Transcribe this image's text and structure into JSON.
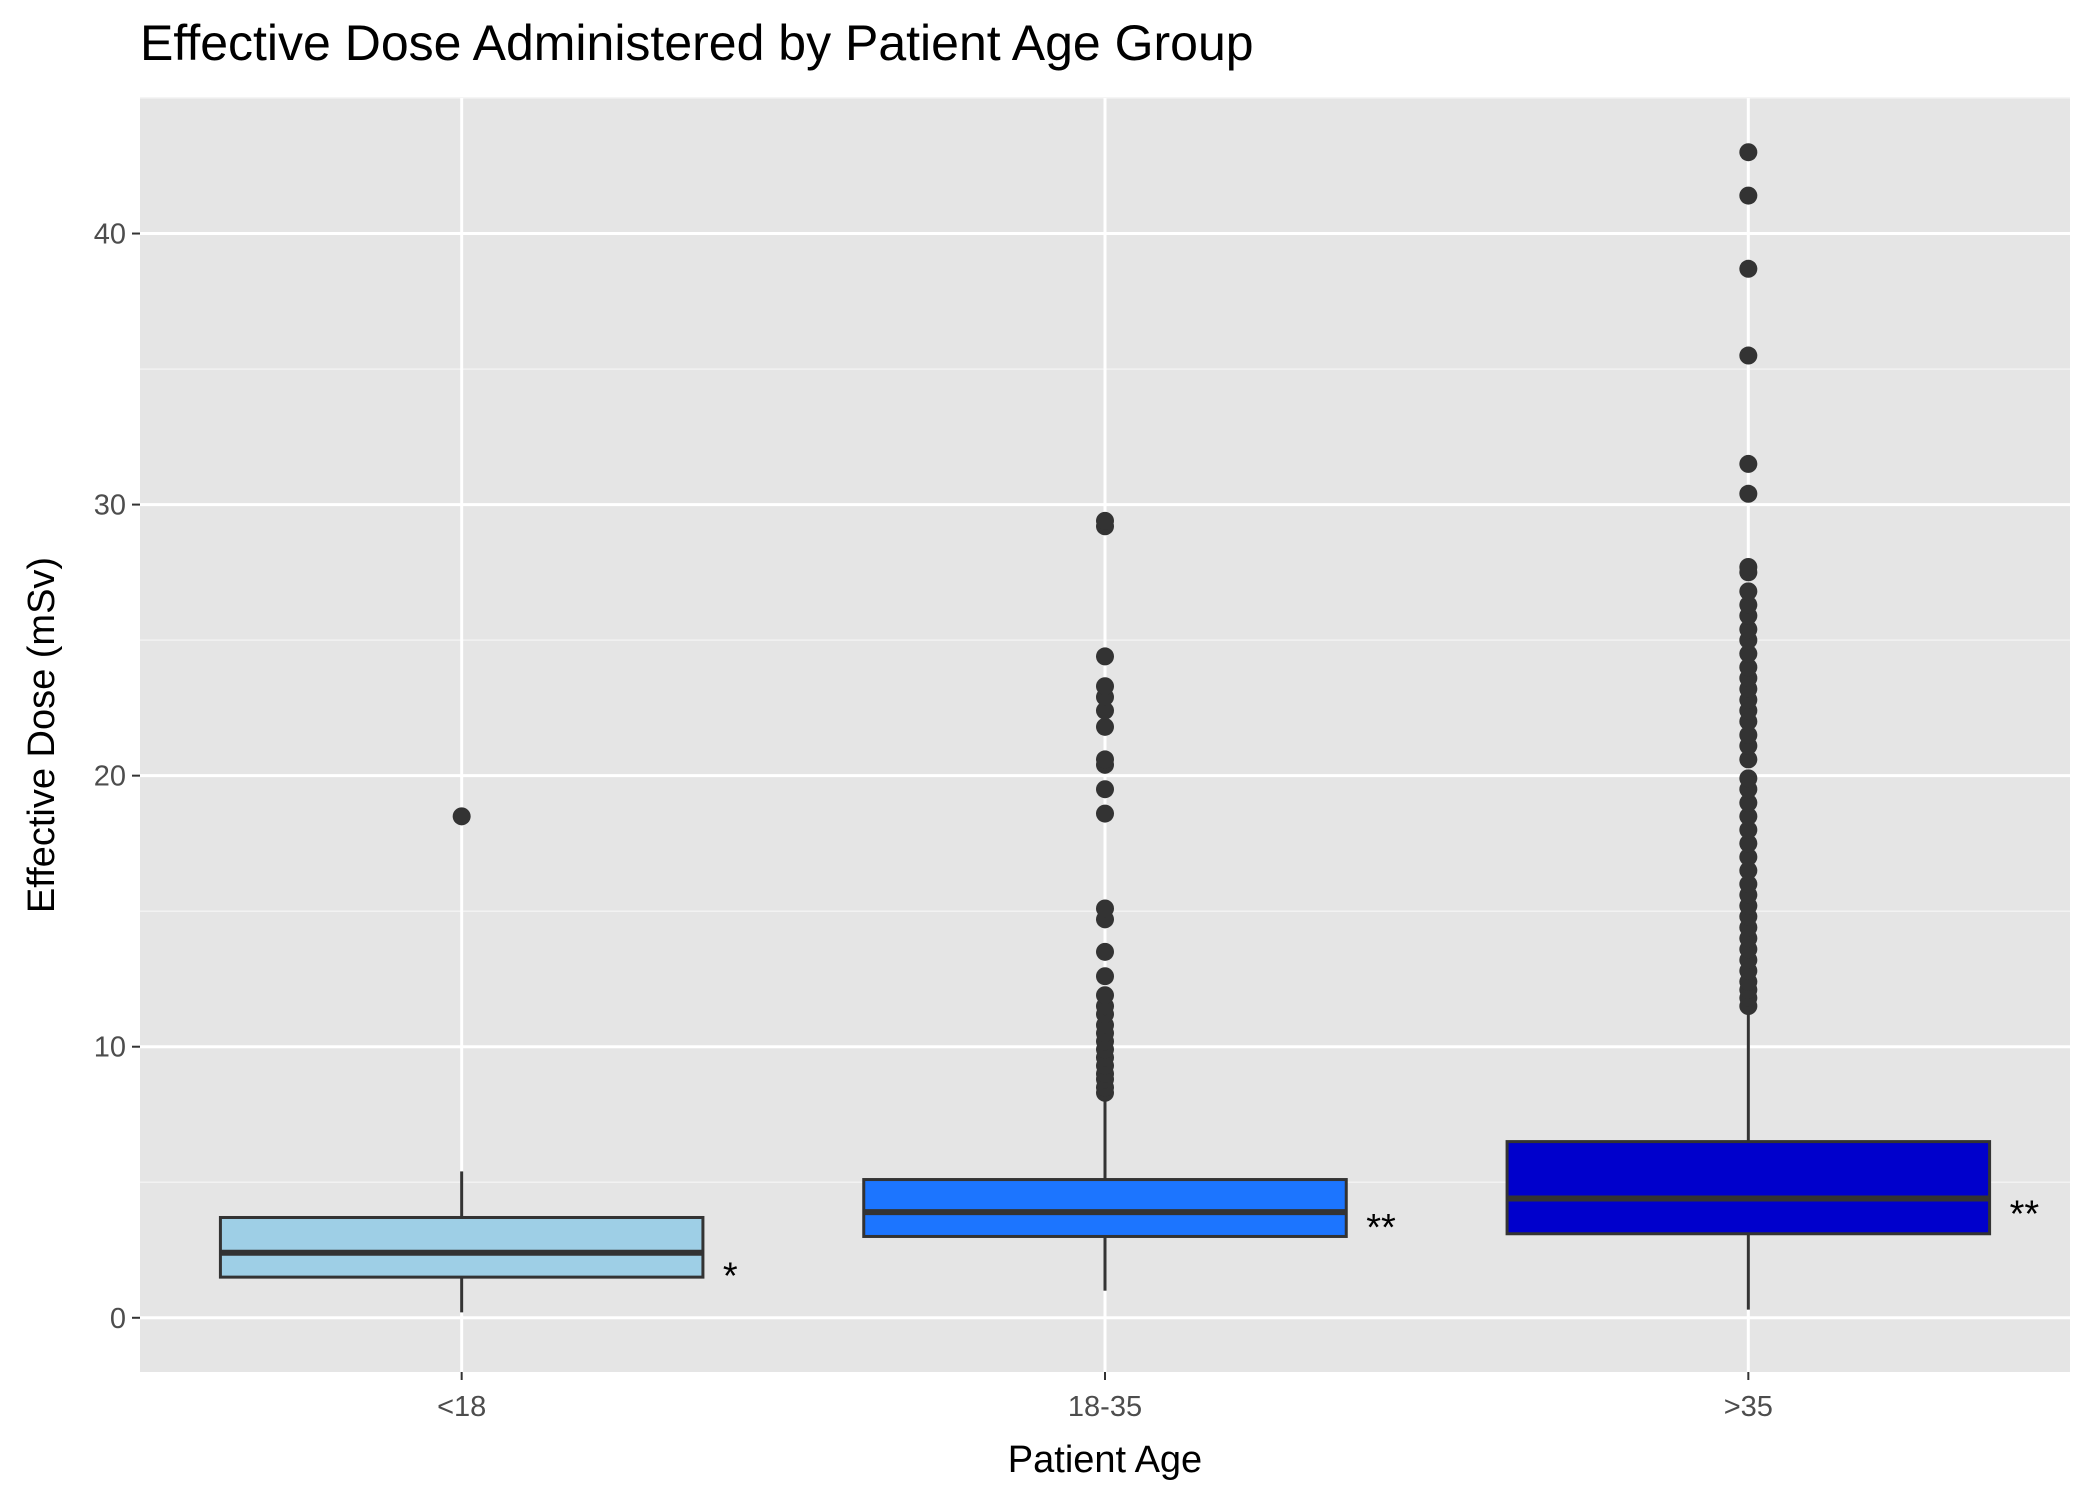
{
  "chart_data": {
    "type": "boxplot",
    "title": "Effective Dose Administered by Patient Age Group",
    "xlabel": "Patient Age",
    "ylabel": "Effective Dose (mSv)",
    "ylim": [
      -2,
      45
    ],
    "y_ticks": [
      0,
      10,
      20,
      30,
      40
    ],
    "y_tick_labels": [
      "0",
      "10",
      "20",
      "30",
      "40"
    ],
    "grid": true,
    "legend": "none",
    "categories": [
      "<18",
      "18-35",
      ">35"
    ],
    "groups": [
      {
        "category": "<18",
        "fill": "#9ecfe6",
        "min": 0.2,
        "q1": 1.5,
        "median": 2.4,
        "q3": 3.7,
        "max": 5.4,
        "outliers": [
          18.5
        ],
        "annotation": "*"
      },
      {
        "category": "18-35",
        "fill": "#1c75ff",
        "min": 1.0,
        "q1": 3.0,
        "median": 3.9,
        "q3": 5.1,
        "max": 8.2,
        "outliers": [
          8.3,
          8.5,
          8.8,
          9.0,
          9.3,
          9.6,
          9.9,
          10.2,
          10.5,
          10.8,
          11.2,
          11.5,
          11.9,
          12.6,
          13.5,
          14.7,
          15.1,
          18.6,
          19.5,
          20.4,
          20.6,
          21.8,
          22.4,
          22.9,
          23.3,
          24.4,
          29.2,
          29.4
        ],
        "annotation": "**"
      },
      {
        "category": ">35",
        "fill": "#0000cc",
        "min": 0.3,
        "q1": 3.1,
        "median": 4.4,
        "q3": 6.5,
        "max": 11.4,
        "outliers": [
          11.5,
          11.8,
          12.1,
          12.4,
          12.8,
          13.2,
          13.6,
          14.0,
          14.4,
          14.8,
          15.2,
          15.6,
          16.0,
          16.5,
          17.0,
          17.5,
          18.0,
          18.5,
          19.0,
          19.5,
          19.9,
          20.6,
          21.1,
          21.5,
          22.0,
          22.4,
          22.8,
          23.2,
          23.6,
          24.0,
          24.5,
          25.0,
          25.4,
          25.9,
          26.3,
          26.8,
          27.5,
          27.7,
          30.4,
          31.5,
          35.5,
          38.7,
          41.4,
          43.0
        ],
        "annotation": "**"
      }
    ]
  }
}
